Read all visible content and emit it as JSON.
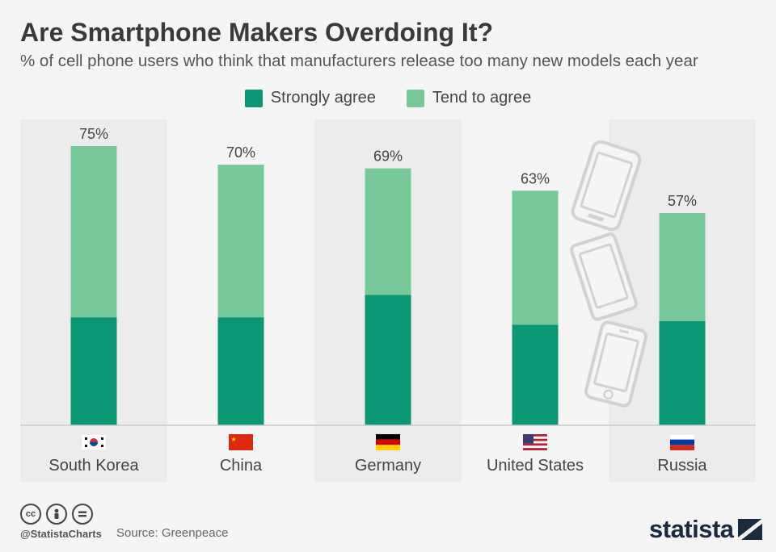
{
  "title": "Are Smartphone Makers Overdoing It?",
  "subtitle": "% of cell phone users who think that manufacturers release too many new models each year",
  "legend": {
    "strongly": "Strongly agree",
    "tend": "Tend to agree"
  },
  "colors": {
    "strongly": "#0b9674",
    "tend": "#78c99a",
    "band": "#ececec"
  },
  "chart_data": {
    "type": "bar",
    "stacked": true,
    "title": "Are Smartphone Makers Overdoing It?",
    "subtitle": "% of cell phone users who think that manufacturers release too many new models each year",
    "categories": [
      "South Korea",
      "China",
      "Germany",
      "United States",
      "Russia"
    ],
    "totals": [
      "75%",
      "70%",
      "69%",
      "63%",
      "57%"
    ],
    "series": [
      {
        "name": "Strongly agree",
        "values": [
          29,
          29,
          35,
          27,
          28
        ]
      },
      {
        "name": "Tend to agree",
        "values": [
          46,
          41,
          34,
          36,
          29
        ]
      }
    ],
    "ylim": [
      0,
      75
    ]
  },
  "footer": {
    "handle": "@StatistaCharts",
    "source": "Source: Greenpeace",
    "brand": "statista"
  }
}
